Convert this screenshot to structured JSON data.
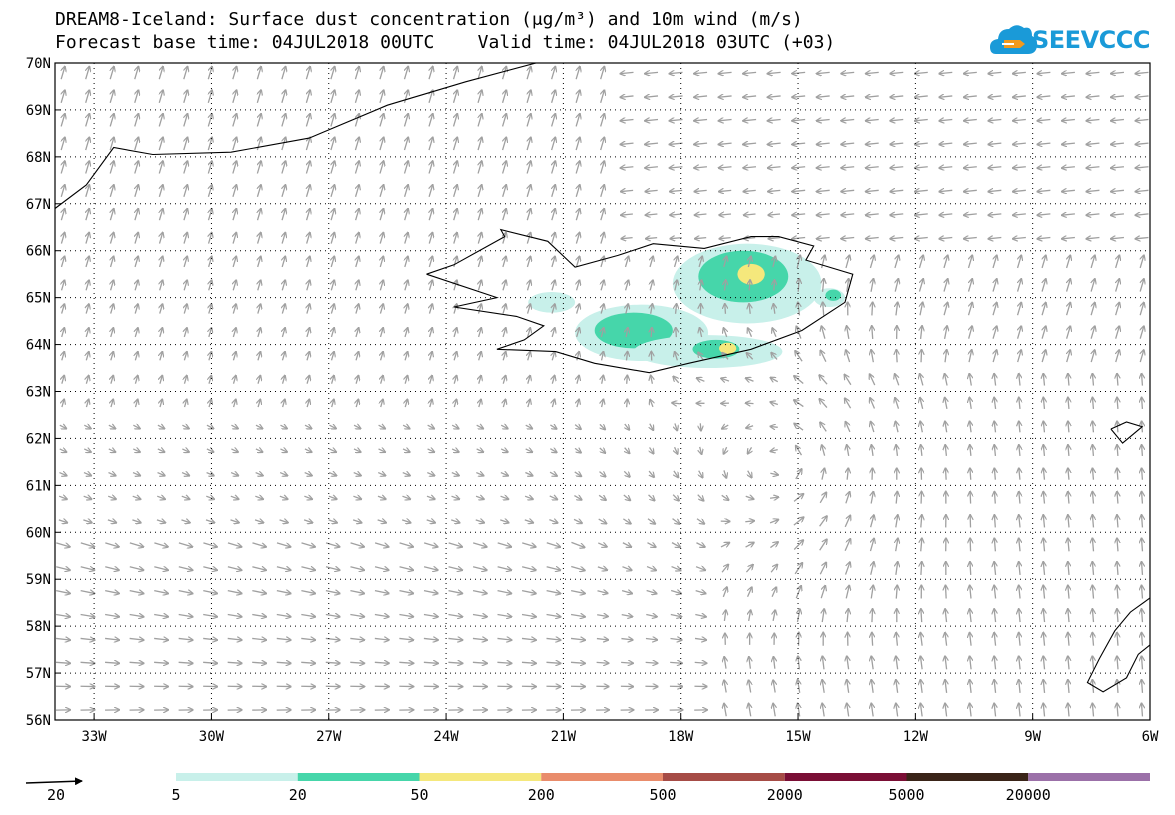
{
  "title_line1": "DREAM8-Iceland: Surface dust concentration (μg/m³) and 10m wind (m/s)",
  "title_line2": "Forecast base time: 04JUL2018 00UTC    Valid time: 04JUL2018 03UTC (+03)",
  "logo_text": "SEEVCCC",
  "logo_icon": "cloud-icon",
  "chart_data": {
    "type": "heatmap",
    "title": "DREAM8-Iceland: Surface dust concentration (μg/m³) and 10m wind (m/s)",
    "x_ticks": [
      "33W",
      "30W",
      "27W",
      "24W",
      "21W",
      "18W",
      "15W",
      "12W",
      "9W",
      "6W"
    ],
    "x_tick_values": [
      -33,
      -30,
      -27,
      -24,
      -21,
      -18,
      -15,
      -12,
      -9,
      -6
    ],
    "y_ticks": [
      "56N",
      "57N",
      "58N",
      "59N",
      "60N",
      "61N",
      "62N",
      "63N",
      "64N",
      "65N",
      "66N",
      "67N",
      "68N",
      "69N",
      "70N"
    ],
    "y_tick_values": [
      56,
      57,
      58,
      59,
      60,
      61,
      62,
      63,
      64,
      65,
      66,
      67,
      68,
      69,
      70
    ],
    "xlim": [
      -34,
      -6
    ],
    "ylim": [
      56,
      70
    ],
    "grid": true,
    "reference_vector": {
      "label": "20",
      "value": 20
    },
    "colorbar": {
      "levels": [
        "5",
        "20",
        "50",
        "200",
        "500",
        "2000",
        "5000",
        "20000"
      ],
      "colors": [
        "#c8f0ea",
        "#46d6aa",
        "#f5e87c",
        "#e98c6b",
        "#a64c46",
        "#7a0e35",
        "#3a2418",
        "#9b70a8"
      ]
    },
    "dust_areas": [
      {
        "level": "5-20",
        "lon": -16.3,
        "lat": 65.3,
        "rlon": 1.9,
        "rlat": 0.85
      },
      {
        "level": "20-50",
        "lon": -16.4,
        "lat": 65.45,
        "rlon": 1.15,
        "rlat": 0.55
      },
      {
        "level": "50-200",
        "lon": -16.2,
        "lat": 65.5,
        "rlon": 0.35,
        "rlat": 0.22
      },
      {
        "level": "5-20",
        "lon": -19.0,
        "lat": 64.25,
        "rlon": 1.7,
        "rlat": 0.6
      },
      {
        "level": "20-50",
        "lon": -19.2,
        "lat": 64.3,
        "rlon": 1.0,
        "rlat": 0.38
      },
      {
        "level": "5-20",
        "lon": -17.3,
        "lat": 63.85,
        "rlon": 1.9,
        "rlat": 0.35
      },
      {
        "level": "20-50",
        "lon": -17.1,
        "lat": 63.9,
        "rlon": 0.6,
        "rlat": 0.2
      },
      {
        "level": "50-200",
        "lon": -16.8,
        "lat": 63.92,
        "rlon": 0.22,
        "rlat": 0.12
      },
      {
        "level": "5-20",
        "lon": -21.3,
        "lat": 64.9,
        "rlon": 0.6,
        "rlat": 0.22
      },
      {
        "level": "5-20",
        "lon": -14.2,
        "lat": 65.0,
        "rlon": 0.4,
        "rlat": 0.2
      },
      {
        "level": "20-50",
        "lon": -14.1,
        "lat": 65.05,
        "rlon": 0.2,
        "rlat": 0.12
      }
    ]
  }
}
